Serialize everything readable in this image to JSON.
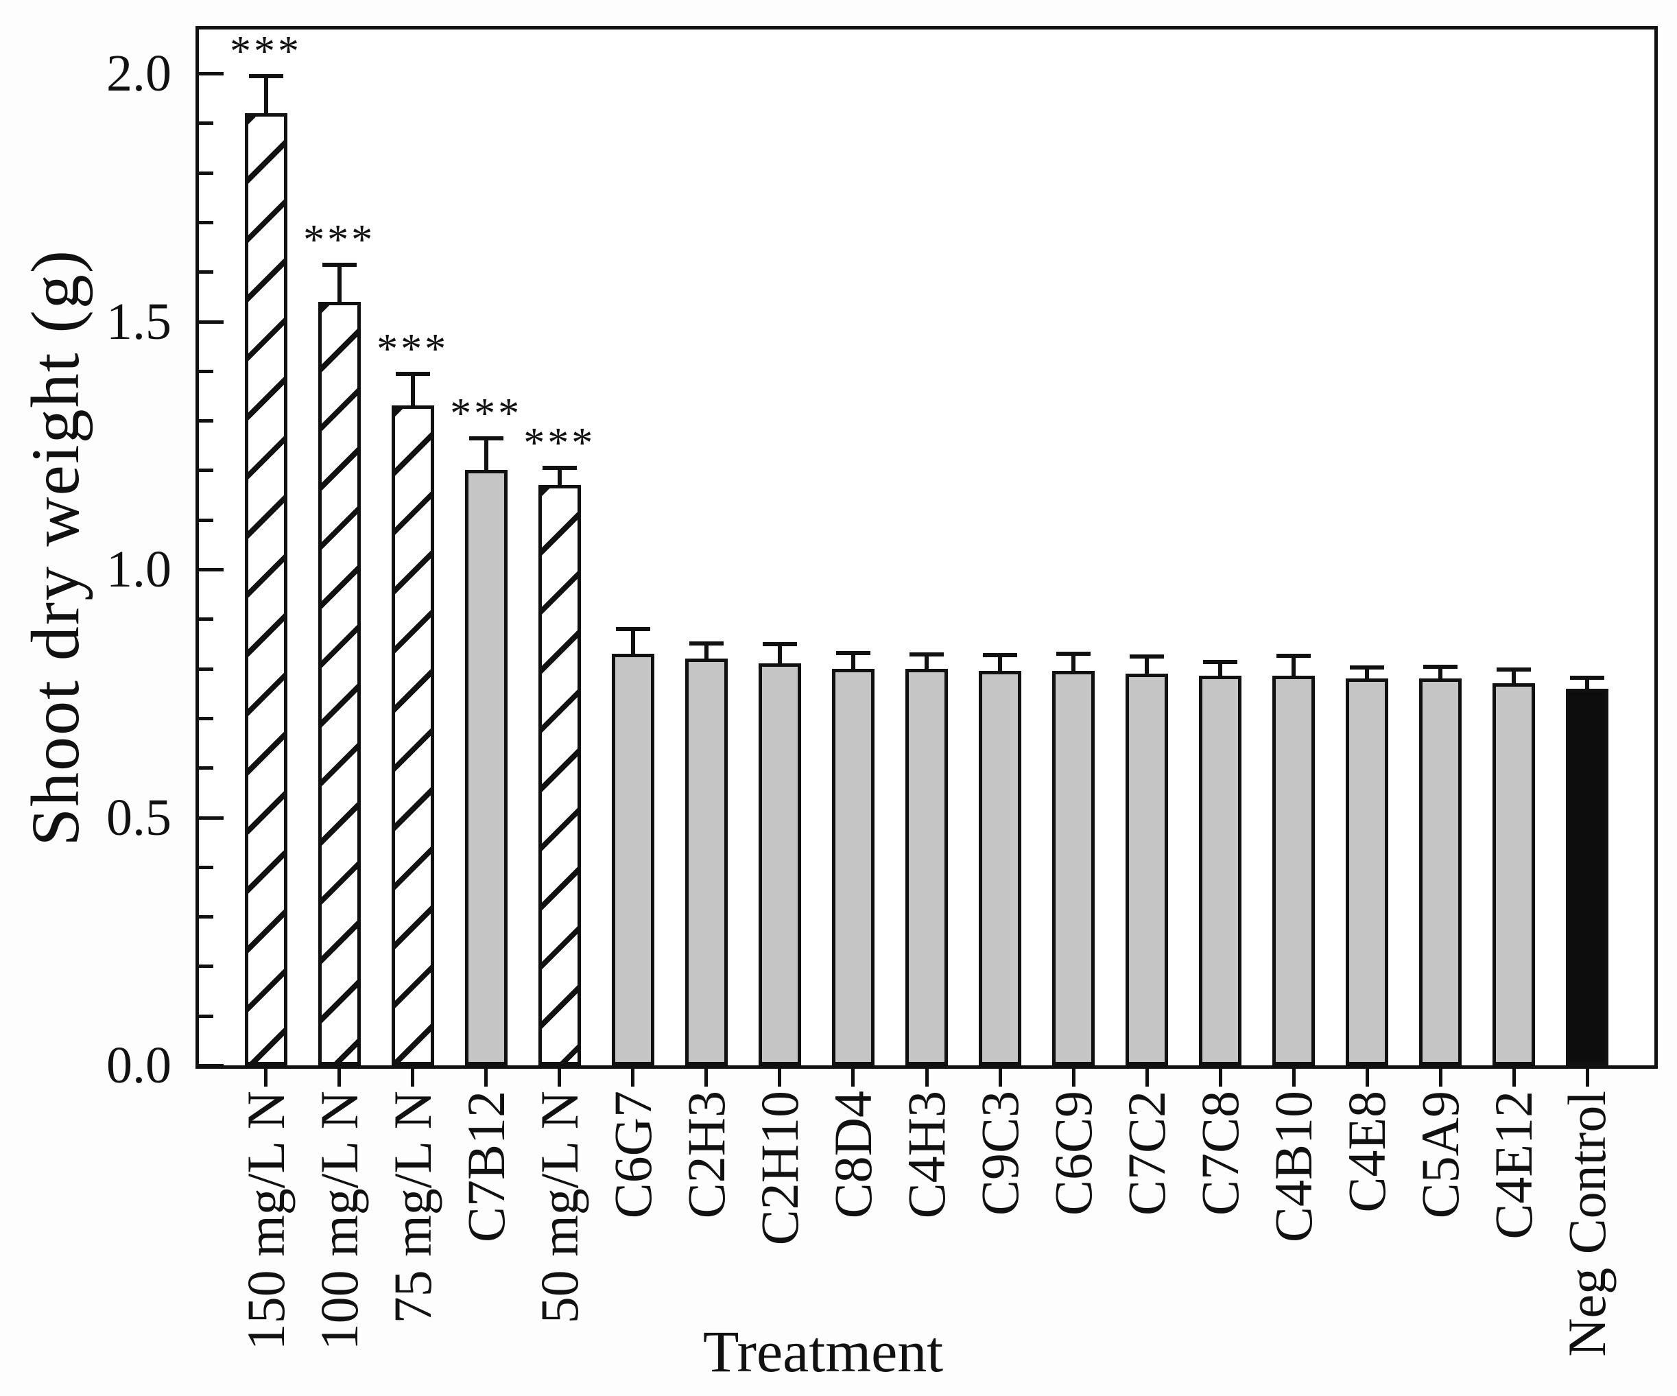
{
  "chart_data": {
    "type": "bar",
    "title": "",
    "ylabel": "Shoot dry weight (g)",
    "xlabel": "Treatment",
    "ylim": [
      0,
      2.09
    ],
    "ytick_values": [
      0.0,
      0.5,
      1.0,
      1.5,
      2.0
    ],
    "ytick_labels": [
      "0.0",
      "0.5",
      "1.0",
      "1.5",
      "2.0"
    ],
    "minor_tick_step": 0.1,
    "grid": false,
    "legend_position": "none",
    "error_bar_caps": "upper-only",
    "categories": [
      "150 mg/L N",
      "100 mg/L N",
      "75 mg/L N",
      "C7B12",
      "50 mg/L N",
      "C6G7",
      "C2H3",
      "C2H10",
      "C8D4",
      "C4H3",
      "C9C3",
      "C6C9",
      "C7C2",
      "C7C8",
      "C4B10",
      "C4E8",
      "C5A9",
      "C4E12",
      "Neg Control"
    ],
    "values": [
      1.92,
      1.54,
      1.33,
      1.2,
      1.17,
      0.83,
      0.82,
      0.81,
      0.8,
      0.8,
      0.795,
      0.795,
      0.79,
      0.785,
      0.785,
      0.78,
      0.78,
      0.77,
      0.76
    ],
    "errors": [
      0.07,
      0.07,
      0.06,
      0.06,
      0.03,
      0.045,
      0.026,
      0.034,
      0.027,
      0.025,
      0.027,
      0.03,
      0.03,
      0.023,
      0.036,
      0.018,
      0.02,
      0.024,
      0.018
    ],
    "significance": [
      "***",
      "***",
      "***",
      "***",
      "***",
      "",
      "",
      "",
      "",
      "",
      "",
      "",
      "",
      "",
      "",
      "",
      "",
      "",
      ""
    ],
    "bar_styles": [
      "hatch",
      "hatch",
      "hatch",
      "gray",
      "hatch",
      "gray",
      "gray",
      "gray",
      "gray",
      "gray",
      "gray",
      "gray",
      "gray",
      "gray",
      "gray",
      "gray",
      "gray",
      "gray",
      "solid-black"
    ],
    "colors": {
      "bar_gray_fill": "#c5c5c5",
      "bar_black_fill": "#0d0d0d",
      "bar_edge": "#111111",
      "hatch_background": "#ffffff",
      "hatch_pattern": "forward-diagonal",
      "axis": "#111111"
    }
  }
}
